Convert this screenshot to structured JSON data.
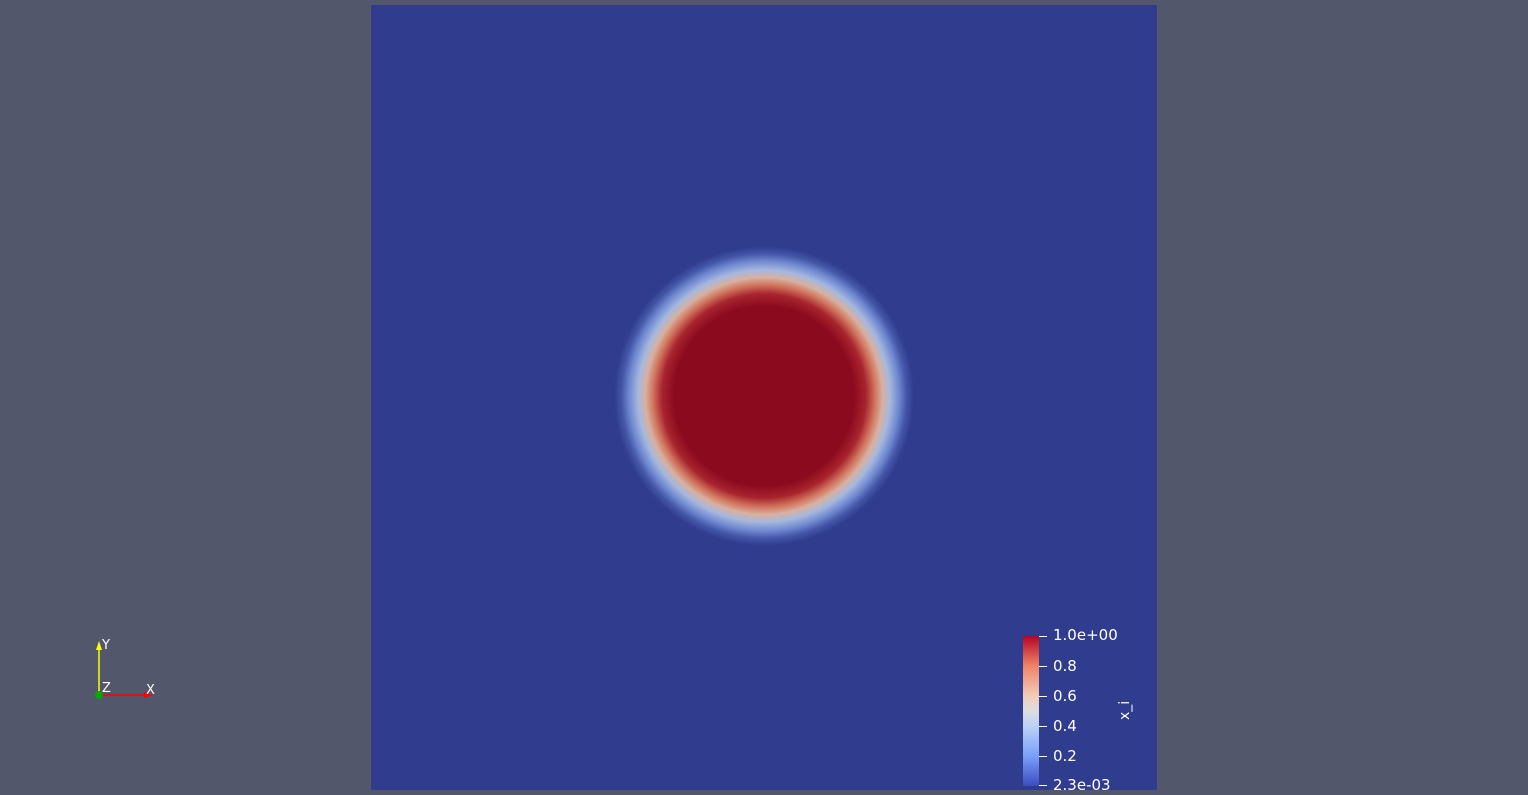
{
  "colorbar": {
    "title": "x_i",
    "labels": [
      "1.0e+00",
      "0.8",
      "0.6",
      "0.4",
      "0.2",
      "2.3e-03"
    ],
    "colors": {
      "high": "#b40426",
      "mid": "#dddddd",
      "low": "#3b4cc0"
    }
  },
  "axes": {
    "x": "X",
    "y": "Y",
    "z": "Z",
    "colors": {
      "x": "#ff0000",
      "y": "#ffff00",
      "z": "#00aa00"
    }
  },
  "scene": {
    "background": "#52576b",
    "domain_color": "#303c8e",
    "blob_core_color": "#8b0a1e"
  }
}
